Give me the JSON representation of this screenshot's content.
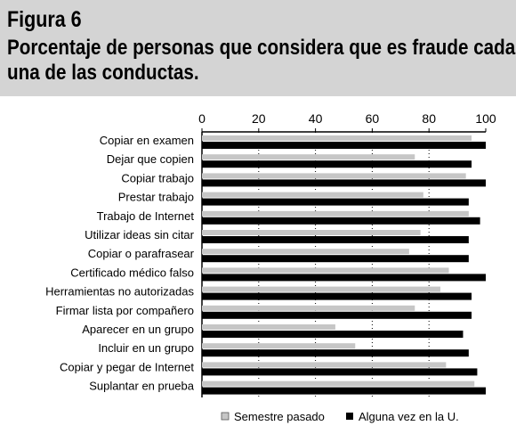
{
  "figure": {
    "label": "Figura 6",
    "title_line1": "Porcentaje de personas que considera que es fraude cada",
    "title_line2": "una de las conductas."
  },
  "chart_data": {
    "type": "bar",
    "orientation": "horizontal",
    "xlim": [
      0,
      100
    ],
    "ticks": [
      "0",
      "20",
      "40",
      "60",
      "80",
      "100"
    ],
    "grid": true,
    "legend_position": "bottom",
    "categories": [
      "Copiar en examen",
      "Dejar que copien",
      "Copiar trabajo",
      "Prestar trabajo",
      "Trabajo de Internet",
      "Utilizar ideas sin citar",
      "Copiar o parafrasear",
      "Certificado médico falso",
      "Herramientas no autorizadas",
      "Firmar lista por compañero",
      "Aparecer en un grupo",
      "Incluir en un grupo",
      "Copiar y pegar de Internet",
      "Suplantar en prueba"
    ],
    "series": [
      {
        "name": "Semestre pasado",
        "color": "#c6c6c6",
        "values": [
          95,
          75,
          93,
          78,
          94,
          77,
          73,
          87,
          84,
          75,
          47,
          54,
          86,
          96
        ]
      },
      {
        "name": "Alguna vez en la U.",
        "color": "#000000",
        "values": [
          100,
          95,
          100,
          94,
          98,
          94,
          94,
          100,
          95,
          95,
          92,
          94,
          97,
          100
        ]
      }
    ]
  }
}
